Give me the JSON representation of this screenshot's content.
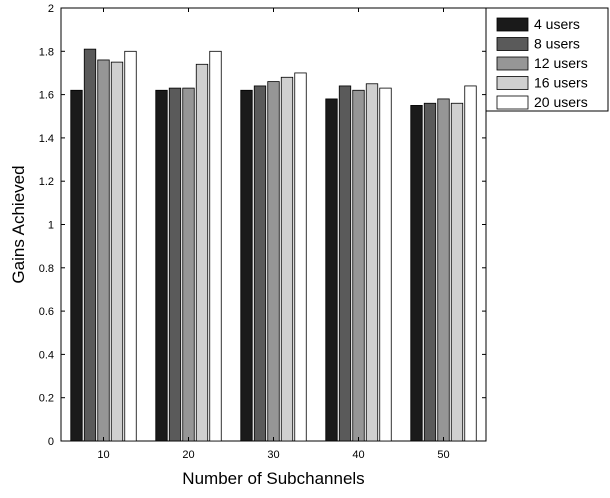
{
  "chart_data": {
    "type": "bar",
    "title": "",
    "xlabel": "Number of Subchannels",
    "ylabel": "Gains Achieved",
    "categories": [
      "10",
      "20",
      "30",
      "40",
      "50"
    ],
    "ylim": [
      0,
      2
    ],
    "yticks": [
      "0",
      "0.2",
      "0.4",
      "0.6",
      "0.8",
      "1",
      "1.2",
      "1.4",
      "1.6",
      "1.8",
      "2"
    ],
    "grid": false,
    "legend_position": "outside-top-right",
    "series": [
      {
        "name": "4 users",
        "color": "#1a1a1a",
        "values": [
          1.62,
          1.62,
          1.62,
          1.58,
          1.55
        ]
      },
      {
        "name": "8 users",
        "color": "#5a5a5a",
        "values": [
          1.81,
          1.63,
          1.64,
          1.64,
          1.56
        ]
      },
      {
        "name": "12 users",
        "color": "#969696",
        "values": [
          1.76,
          1.63,
          1.66,
          1.62,
          1.58
        ]
      },
      {
        "name": "16 users",
        "color": "#cfcfcf",
        "values": [
          1.75,
          1.74,
          1.68,
          1.65,
          1.56
        ]
      },
      {
        "name": "20 users",
        "color": "#ffffff",
        "values": [
          1.8,
          1.8,
          1.7,
          1.63,
          1.64
        ]
      }
    ]
  }
}
